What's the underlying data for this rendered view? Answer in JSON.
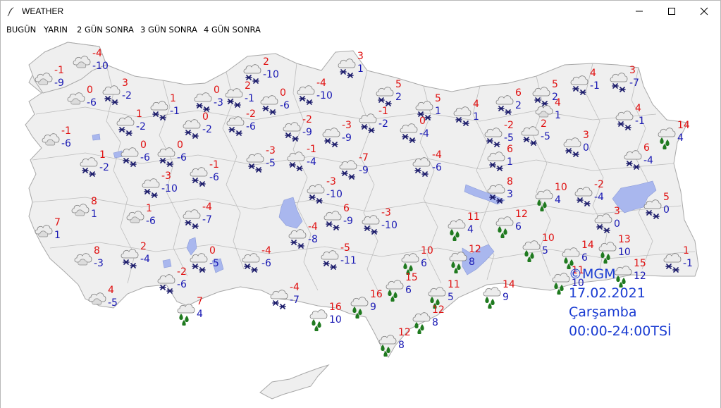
{
  "window": {
    "title": "WEATHER"
  },
  "menu": [
    "BUGÜN",
    "YARIN",
    "2 GÜN SONRA",
    "3 GÜN SONRA",
    "4 GÜN SONRA"
  ],
  "footer": {
    "source": "©MGM",
    "date": "17.02.2021",
    "day": "Çarşamba",
    "range": "00:00-24:00TSİ"
  },
  "colors": {
    "max_temp": "#e01010",
    "min_temp": "#1a1ab4",
    "land": "#efefef",
    "border": "#a8a8a8",
    "water": "#a9b7ee",
    "footer": "#1a3cd2"
  },
  "stations": [
    {
      "max": "-4",
      "min": "-10",
      "icon": "cloudy-icon"
    },
    {
      "max": "-1",
      "min": "-9",
      "icon": "cloudy-icon"
    },
    {
      "max": "0",
      "min": "-6",
      "icon": "cloudy-icon"
    },
    {
      "max": "3",
      "min": "-2",
      "icon": "snow-icon"
    },
    {
      "max": "1",
      "min": "-1",
      "icon": "snow-icon"
    },
    {
      "max": "-1",
      "min": "-6",
      "icon": "cloudy-icon"
    },
    {
      "max": "1",
      "min": "-2",
      "icon": "snow-icon"
    },
    {
      "max": "0",
      "min": "-2",
      "icon": "snow-icon"
    },
    {
      "max": "0",
      "min": "-6",
      "icon": "snow-icon"
    },
    {
      "max": "1",
      "min": "-2",
      "icon": "snow-icon"
    },
    {
      "max": "0",
      "min": "-6",
      "icon": "snow-icon"
    },
    {
      "max": "0",
      "min": "-3",
      "icon": "snow-icon"
    },
    {
      "max": "2",
      "min": "-1",
      "icon": "snow-icon"
    },
    {
      "max": "2",
      "min": "-10",
      "icon": "snow-icon"
    },
    {
      "max": "0",
      "min": "-6",
      "icon": "snow-icon"
    },
    {
      "max": "-4",
      "min": "-10",
      "icon": "snow-icon"
    },
    {
      "max": "3",
      "min": "1",
      "icon": "snow-icon"
    },
    {
      "max": "5",
      "min": "2",
      "icon": "snow-icon"
    },
    {
      "max": "5",
      "min": "1",
      "icon": "snow-icon"
    },
    {
      "max": "4",
      "min": "1",
      "icon": "snow-icon"
    },
    {
      "max": "6",
      "min": "2",
      "icon": "snow-icon"
    },
    {
      "max": "5",
      "min": "2",
      "icon": "snow-icon"
    },
    {
      "max": "4",
      "min": "-1",
      "icon": "snow-icon"
    },
    {
      "max": "3",
      "min": "-7",
      "icon": "snow-icon"
    },
    {
      "max": "-2",
      "min": "-6",
      "icon": "snow-icon"
    },
    {
      "max": "-2",
      "min": "-9",
      "icon": "snow-icon"
    },
    {
      "max": "-3",
      "min": "-9",
      "icon": "snow-icon"
    },
    {
      "max": "-1",
      "min": "-2",
      "icon": "snow-icon"
    },
    {
      "max": "0",
      "min": "-4",
      "icon": "snow-icon"
    },
    {
      "max": "4",
      "min": "1",
      "icon": "cloudy-icon"
    },
    {
      "max": "-2",
      "min": "-5",
      "icon": "snow-icon"
    },
    {
      "max": "2",
      "min": "-5",
      "icon": "snow-icon"
    },
    {
      "max": "4",
      "min": "-1",
      "icon": "snow-icon"
    },
    {
      "max": "14",
      "min": "4",
      "icon": "rain-icon"
    },
    {
      "max": "-3",
      "min": "-5",
      "icon": "snow-icon"
    },
    {
      "max": "-1",
      "min": "-4",
      "icon": "snow-icon"
    },
    {
      "max": "-7",
      "min": "-9",
      "icon": "snow-icon"
    },
    {
      "max": "-4",
      "min": "-6",
      "icon": "snow-icon"
    },
    {
      "max": "6",
      "min": "1",
      "icon": "snow-icon"
    },
    {
      "max": "3",
      "min": "0",
      "icon": "snow-icon"
    },
    {
      "max": "6",
      "min": "-4",
      "icon": "snow-icon"
    },
    {
      "max": "-3",
      "min": "-10",
      "icon": "snow-icon"
    },
    {
      "max": "-1",
      "min": "-6",
      "icon": "snow-icon"
    },
    {
      "max": "-3",
      "min": "-10",
      "icon": "snow-icon"
    },
    {
      "max": "8",
      "min": "3",
      "icon": "snow-icon"
    },
    {
      "max": "10",
      "min": "4",
      "icon": "rain-icon"
    },
    {
      "max": "-2",
      "min": "-4",
      "icon": "snow-icon"
    },
    {
      "max": "8",
      "min": "1",
      "icon": "cloudy-icon"
    },
    {
      "max": "7",
      "min": "1",
      "icon": "cloudy-icon"
    },
    {
      "max": "1",
      "min": "-6",
      "icon": "cloudy-icon"
    },
    {
      "max": "-4",
      "min": "-7",
      "icon": "snow-icon"
    },
    {
      "max": "6",
      "min": "-9",
      "icon": "snow-icon"
    },
    {
      "max": "-3",
      "min": "-10",
      "icon": "snow-icon"
    },
    {
      "max": "-4",
      "min": "-8",
      "icon": "snow-icon"
    },
    {
      "max": "11",
      "min": "4",
      "icon": "rain-icon"
    },
    {
      "max": "12",
      "min": "6",
      "icon": "rain-icon"
    },
    {
      "max": "3",
      "min": "0",
      "icon": "snow-icon"
    },
    {
      "max": "5",
      "min": "0",
      "icon": "snow-icon"
    },
    {
      "max": "8",
      "min": "-3",
      "icon": "cloudy-icon"
    },
    {
      "max": "2",
      "min": "-4",
      "icon": "snow-icon"
    },
    {
      "max": "0",
      "min": "-5",
      "icon": "snow-icon"
    },
    {
      "max": "-4",
      "min": "-6",
      "icon": "snow-icon"
    },
    {
      "max": "-5",
      "min": "-11",
      "icon": "snow-icon"
    },
    {
      "max": "10",
      "min": "6",
      "icon": "rain-icon"
    },
    {
      "max": "12",
      "min": "8",
      "icon": "rain-icon"
    },
    {
      "max": "10",
      "min": "5",
      "icon": "rain-icon"
    },
    {
      "max": "14",
      "min": "6",
      "icon": "rain-icon"
    },
    {
      "max": "13",
      "min": "10",
      "icon": "rain-icon"
    },
    {
      "max": "1",
      "min": "-1",
      "icon": "snow-icon"
    },
    {
      "max": "-2",
      "min": "-6",
      "icon": "snow-icon"
    },
    {
      "max": "4",
      "min": "-5",
      "icon": "cloudy-icon"
    },
    {
      "max": "-4",
      "min": "-7",
      "icon": "snow-icon"
    },
    {
      "max": "15",
      "min": "6",
      "icon": "rain-icon"
    },
    {
      "max": "11",
      "min": "5",
      "icon": "rain-icon"
    },
    {
      "max": "14",
      "min": "9",
      "icon": "rain-icon"
    },
    {
      "max": "11",
      "min": "10",
      "icon": "rain-icon"
    },
    {
      "max": "15",
      "min": "12",
      "icon": "rain-icon"
    },
    {
      "max": "7",
      "min": "4",
      "icon": "rain-icon"
    },
    {
      "max": "16",
      "min": "10",
      "icon": "rain-icon"
    },
    {
      "max": "16",
      "min": "9",
      "icon": "rain-icon"
    },
    {
      "max": "12",
      "min": "8",
      "icon": "rain-icon"
    },
    {
      "max": "12",
      "min": "8",
      "icon": "rain-icon"
    }
  ]
}
